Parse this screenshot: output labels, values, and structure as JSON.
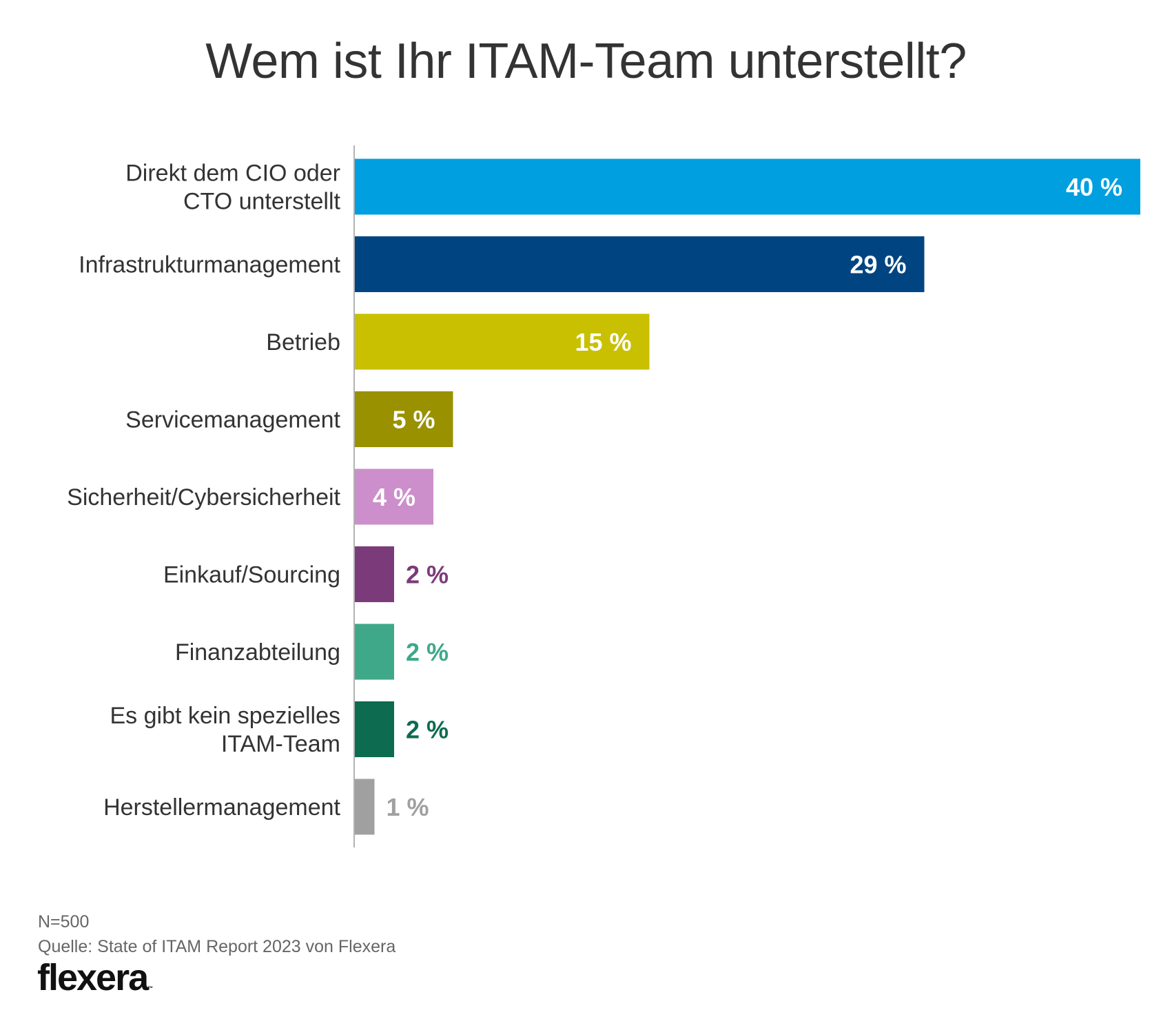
{
  "title": "Wem ist Ihr ITAM-Team unterstellt?",
  "footer": {
    "sample": "N=500",
    "source": "Quelle: State of ITAM Report 2023 von Flexera"
  },
  "logo": {
    "text": "flexera",
    "mark": "™"
  },
  "chart_data": {
    "type": "bar",
    "orientation": "horizontal",
    "xlim": [
      0,
      40
    ],
    "grid": false,
    "categories": [
      [
        "Direkt dem CIO oder",
        "CTO unterstellt"
      ],
      [
        "Infrastrukturmanagement"
      ],
      [
        "Betrieb"
      ],
      [
        "Servicemanagement"
      ],
      [
        "Sicherheit/Cybersicherheit"
      ],
      [
        "Einkauf/Sourcing"
      ],
      [
        "Finanzabteilung"
      ],
      [
        "Es gibt kein spezielles",
        "ITAM-Team"
      ],
      [
        "Herstellermanagement"
      ]
    ],
    "values": [
      40,
      29,
      15,
      5,
      4,
      2,
      2,
      2,
      1
    ],
    "value_labels": [
      "40 %",
      "29 %",
      "15 %",
      "5 %",
      "4 %",
      "2 %",
      "2 %",
      "2 %",
      "1 %"
    ],
    "colors": [
      "#009fdf",
      "#004581",
      "#c8c000",
      "#999100",
      "#cc8fcb",
      "#7b3b7a",
      "#3fa889",
      "#0d6b50",
      "#a0a0a0"
    ],
    "label_inside": [
      true,
      true,
      true,
      true,
      true,
      false,
      false,
      false,
      false
    ]
  }
}
